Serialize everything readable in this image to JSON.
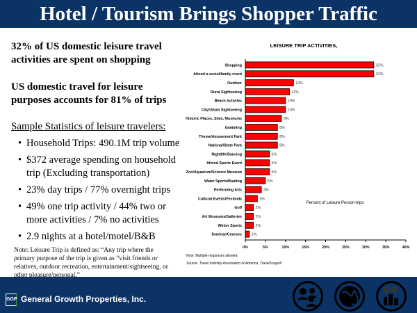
{
  "title": "Hotel / Tourism Brings Shopper Traffic",
  "left": {
    "headline1": "32% of US domestic leisure travel activities are spent on shopping",
    "headline2": "US domestic travel for leisure purposes accounts for 81% of trips",
    "stats_heading": "Sample Statistics of leisure travelers:",
    "bullets": [
      "Household Trips: 490.1M trip volume",
      "$372 average spending on household trip (Excluding transportation)",
      "23% day trips / 77% overnight trips",
      "49% one trip activity / 44% two or more activities / 7% no activities",
      "2.9 nights at a hotel/motel/B&B"
    ],
    "note": "Note: Leisure Trip is defined as: “Any trip where the primary purpose of the trip is given as “visit friends or relatives, outdoor recreation, entertainment/sightseeing, or other pleasure/personal.”"
  },
  "chart_data": {
    "type": "bar",
    "orientation": "horizontal",
    "title": "LEISURE TRIP ACTIVITIES,",
    "xlabel": "Percent of Leisure Person-trips",
    "xlim": [
      0,
      40
    ],
    "xticks": [
      "0%",
      "5%",
      "10%",
      "15%",
      "20%",
      "25%",
      "30%",
      "35%",
      "40%"
    ],
    "categories": [
      "Shopping",
      "Attend a social/family event",
      "Outdoor",
      "Rural Sightseeing",
      "Beach Activites",
      "City/Urban Sightseeing",
      "Historic Places, Sites, Museums",
      "Gambling",
      "Theme/Amusement Park",
      "National/State Park",
      "Nightlife/Dancing",
      "Attend Sports Event",
      "Zoo/Aquarium/Science Museum",
      "Water Sports/Boating",
      "Performing Arts",
      "Cultural Events/Festivals",
      "Golf",
      "Art Museums/Galleries",
      "Winter Sports",
      "Seminar/Courses"
    ],
    "values": [
      32,
      32,
      12,
      11,
      10,
      10,
      9,
      8,
      8,
      8,
      6,
      6,
      6,
      5,
      4,
      3,
      2,
      2,
      2,
      1
    ],
    "data_labels": [
      "32%",
      "32%",
      "12%",
      "11%",
      "10%",
      "10%",
      "9%",
      "8%",
      "8%",
      "8%",
      "6%",
      "6%",
      "6%",
      "5%",
      "4%",
      "3%",
      "2%",
      "2%",
      "2%",
      "1%"
    ],
    "bar_color": "#ff0000",
    "grid": false,
    "note": "Note: Multiple responses allowed.",
    "source": "Source: Travel Industry Association of America, TravelScope®"
  },
  "footer": {
    "company": "General Growth Properties, Inc.",
    "logo_mark": "GGP",
    "emblems": [
      "people-icon",
      "globe-icon",
      "city-icon"
    ]
  },
  "colors": {
    "band": "#0b3366",
    "text": "#000000",
    "bar": "#ff0000"
  }
}
